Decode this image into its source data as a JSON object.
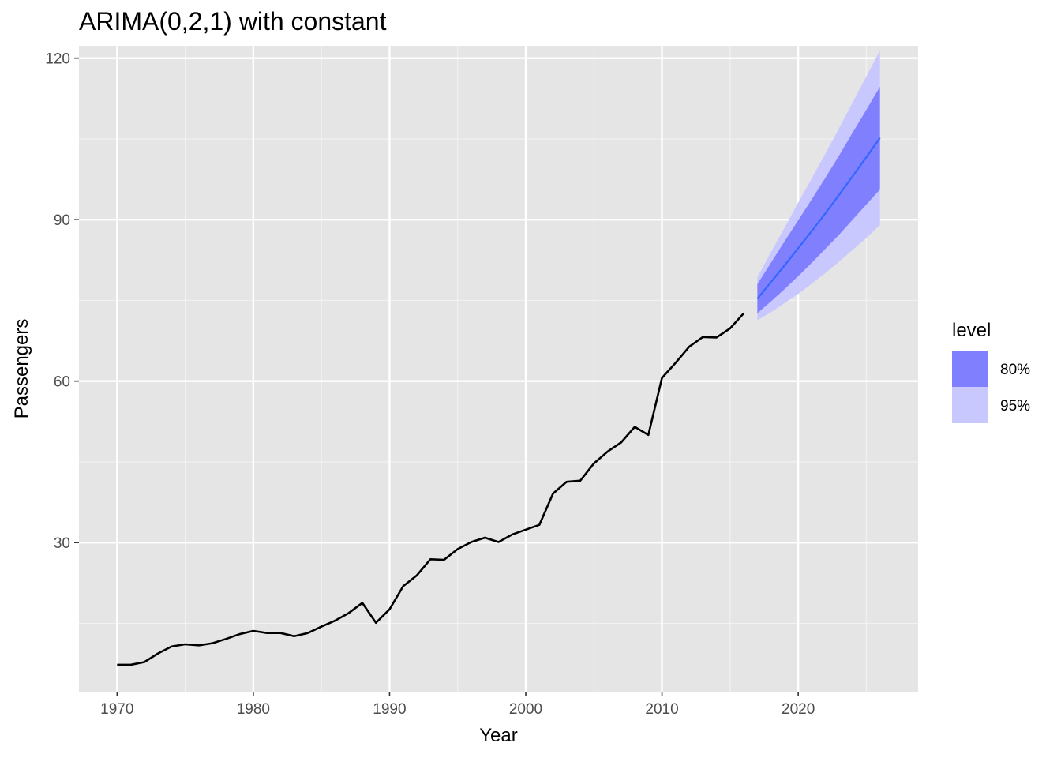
{
  "chart_data": {
    "type": "line",
    "title": "ARIMA(0,2,1) with constant",
    "xlabel": "Year",
    "ylabel": "Passengers",
    "xlim": [
      1967.2,
      2028.8
    ],
    "ylim": [
      2.3,
      122.3
    ],
    "x_ticks": [
      1970,
      1980,
      1990,
      2000,
      2010,
      2020
    ],
    "x_tick_labels": [
      "1970",
      "1980",
      "1990",
      "2000",
      "2010",
      "2020"
    ],
    "x_minor_ticks": [
      1975,
      1985,
      1995,
      2005,
      2015,
      2025
    ],
    "y_ticks": [
      30,
      60,
      90,
      120
    ],
    "y_tick_labels": [
      "30",
      "60",
      "90",
      "120"
    ],
    "y_minor_ticks": [
      15,
      45,
      75,
      105
    ],
    "grid": true,
    "series": [
      {
        "name": "Passengers",
        "color": "#000000",
        "x": [
          1970,
          1971,
          1972,
          1973,
          1974,
          1975,
          1976,
          1977,
          1978,
          1979,
          1980,
          1981,
          1982,
          1983,
          1984,
          1985,
          1986,
          1987,
          1988,
          1989,
          1990,
          1991,
          1992,
          1993,
          1994,
          1995,
          1996,
          1997,
          1998,
          1999,
          2000,
          2001,
          2002,
          2003,
          2004,
          2005,
          2006,
          2007,
          2008,
          2009,
          2010,
          2011,
          2012,
          2013,
          2014,
          2015,
          2016
        ],
        "values": [
          7.3,
          7.3,
          7.8,
          9.4,
          10.7,
          11.1,
          10.9,
          11.3,
          12.1,
          13.0,
          13.6,
          13.2,
          13.2,
          12.6,
          13.2,
          14.4,
          15.5,
          16.9,
          18.8,
          15.1,
          17.6,
          21.9,
          23.9,
          26.9,
          26.8,
          28.8,
          30.1,
          30.9,
          30.1,
          31.5,
          32.4,
          33.3,
          39.1,
          41.3,
          41.5,
          44.7,
          46.9,
          48.6,
          51.5,
          50.0,
          60.6,
          63.4,
          66.4,
          68.2,
          68.1,
          69.8,
          72.6
        ]
      },
      {
        "name": "Point forecast",
        "color": "#3366ff",
        "x": [
          2017,
          2018,
          2019,
          2020,
          2021,
          2022,
          2023,
          2024,
          2025,
          2026
        ],
        "values": [
          75.3,
          78.4,
          81.5,
          84.7,
          87.9,
          91.2,
          94.6,
          98.1,
          101.6,
          105.2
        ]
      }
    ],
    "intervals": [
      {
        "level": "95%",
        "color": "#c8c8ff",
        "x": [
          2017,
          2018,
          2019,
          2020,
          2021,
          2022,
          2023,
          2024,
          2025,
          2026
        ],
        "lower": [
          71.3,
          72.8,
          74.5,
          76.2,
          78.1,
          80.1,
          82.2,
          84.4,
          86.6,
          89.0
        ],
        "upper": [
          79.3,
          84.0,
          88.5,
          93.2,
          97.7,
          102.3,
          107.0,
          111.8,
          116.6,
          121.4
        ]
      },
      {
        "level": "80%",
        "color": "#8080ff",
        "x": [
          2017,
          2018,
          2019,
          2020,
          2021,
          2022,
          2023,
          2024,
          2025,
          2026
        ],
        "lower": [
          72.6,
          74.8,
          77.1,
          79.5,
          82.0,
          84.6,
          87.2,
          90.0,
          92.8,
          95.6
        ],
        "upper": [
          78.0,
          82.0,
          86.0,
          89.9,
          93.8,
          97.8,
          101.9,
          106.2,
          110.4,
          114.7
        ]
      }
    ],
    "legend": {
      "title": "level",
      "position": "right",
      "entries": [
        {
          "label": "80%",
          "color": "#8080ff"
        },
        {
          "label": "95%",
          "color": "#c8c8ff"
        }
      ]
    }
  }
}
